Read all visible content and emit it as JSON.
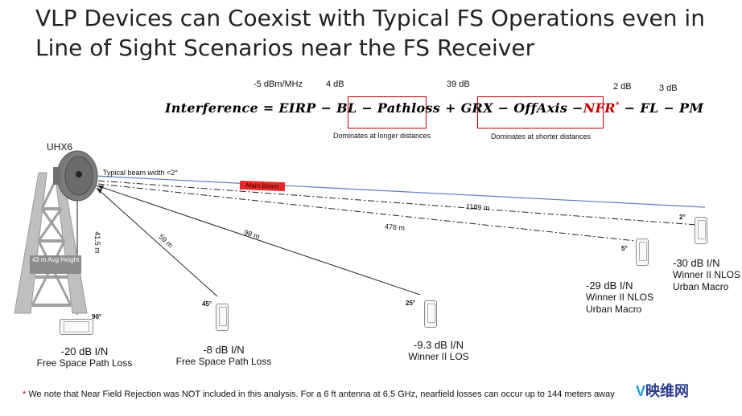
{
  "title": {
    "line1": "VLP Devices can Coexist with Typical FS Operations even in",
    "line2": "Line of Sight Scenarios near the FS Receiver"
  },
  "equation": {
    "lhs": "Interference",
    "eq": "=",
    "eirp": "EIRP",
    "minus1": "−",
    "bl": "BL",
    "pathloss_term": "− Pathloss",
    "plus": "+",
    "grx": "GRX",
    "offaxis_term": "− OffAxis −",
    "nfr": "NFR",
    "asterisk": "*",
    "fl_term": "− FL",
    "pm_term": "− PM",
    "values": {
      "eirp": "-5 dBm/MHz",
      "bl": "4 dB",
      "grx": "39 dB",
      "fl": "2 dB",
      "pm": "3 dB"
    },
    "pathloss_note": "Dominates at longer distances",
    "offaxis_note": "Dominates at shorter distances"
  },
  "tower": {
    "name": "UHX6",
    "height_label": "41.5 m",
    "avg_height_label": "43 m Avg Height",
    "beam_width_label": "Typical beam width <2°",
    "main_beam_label": "Main Beam"
  },
  "distances": {
    "d59": "59 m",
    "d98": "98 m",
    "d476": "476 m",
    "d1189": "1189 m"
  },
  "receivers": [
    {
      "angle": "90°",
      "result": "-20 dB I/N",
      "model": "Free Space Path Loss"
    },
    {
      "angle": "45°",
      "result": "-8 dB I/N",
      "model": "Free Space Path Loss"
    },
    {
      "angle": "25°",
      "result": "-9.3 dB I/N",
      "model": "Winner II LOS"
    },
    {
      "angle": "5°",
      "result": "-29 dB I/N",
      "model": "Winner II NLOS",
      "model2": "Urban Macro"
    },
    {
      "angle": "2°",
      "result": "-30 dB I/N",
      "model": "Winner II NLOS",
      "model2": "Urban Macro"
    }
  ],
  "footnote": {
    "star": "*",
    "text": " We note that Near Field Rejection was NOT included in this analysis.  For a 6 ft antenna at 6.5 GHz, nearfield losses can occur up to 144 meters away"
  },
  "brand": {
    "logo": "V",
    "name": "映维网"
  },
  "colors": {
    "accent_red": "#c00000",
    "main_beam_fill": "#e32b2b",
    "beam_line": "#5b7fc0"
  }
}
